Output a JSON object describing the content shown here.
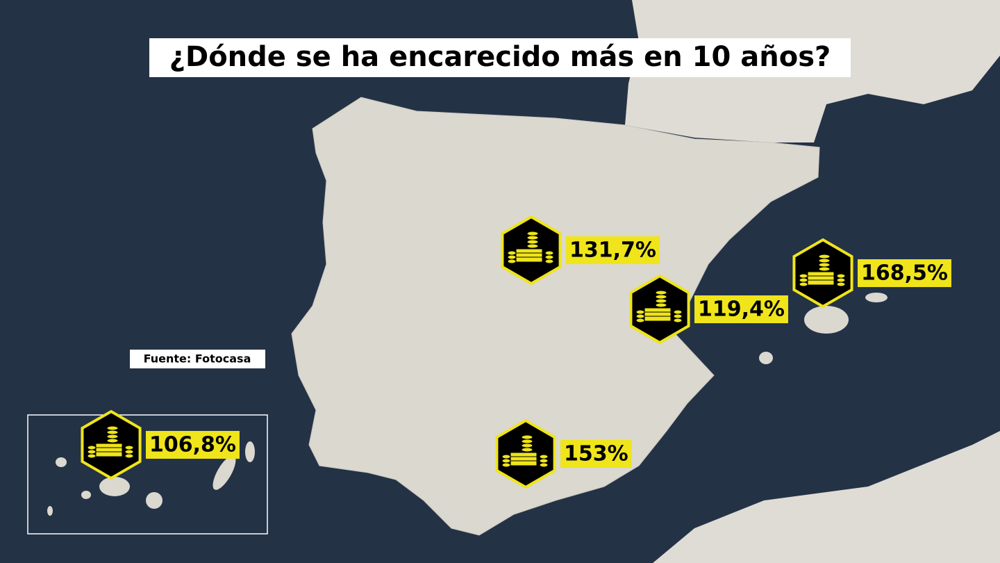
{
  "header": {
    "title": "¿Dónde se ha encarecido más en 10 años?"
  },
  "source": "Fuente: Fotocasa",
  "markers": [
    {
      "label": "131,7%"
    },
    {
      "label": "119,4%"
    },
    {
      "label": "168,5%"
    },
    {
      "label": "153%"
    },
    {
      "label": "106,8%"
    }
  ]
}
